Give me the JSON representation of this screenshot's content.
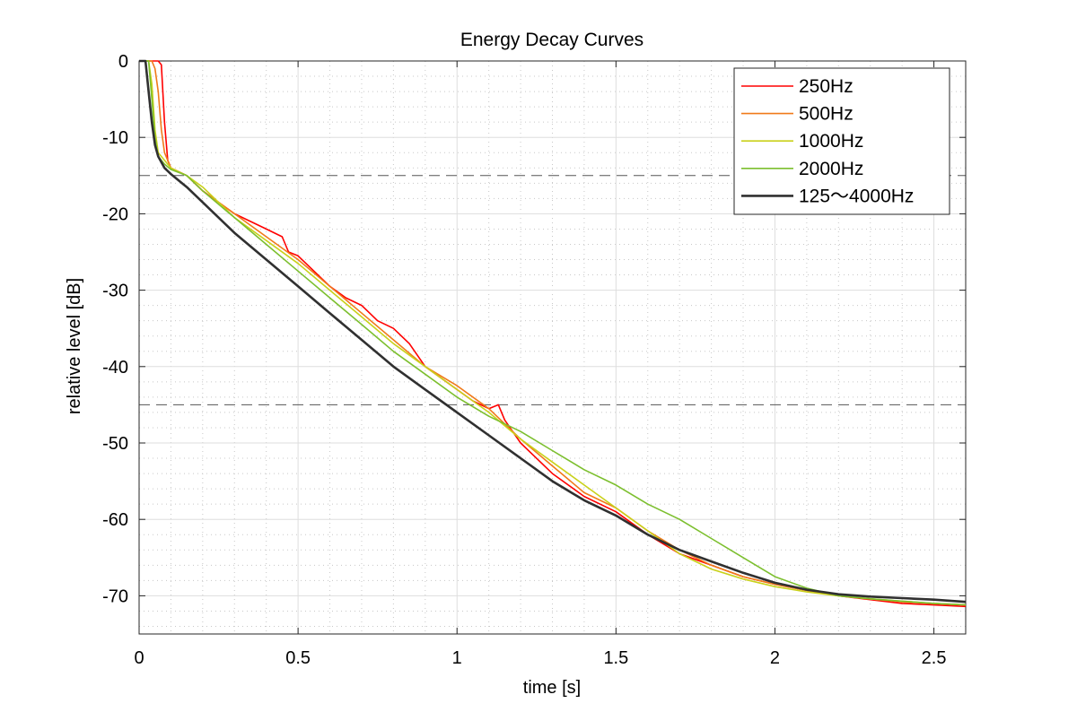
{
  "chart_data": {
    "type": "line",
    "title": "Energy Decay Curves",
    "xlabel": "time [s]",
    "ylabel": "relative level [dB]",
    "xlim": [
      0,
      2.6
    ],
    "ylim": [
      -75,
      0
    ],
    "xticks": [
      0,
      0.5,
      1,
      1.5,
      2,
      2.5
    ],
    "xtick_labels": [
      "0",
      "0.5",
      "1",
      "1.5",
      "2",
      "2.5"
    ],
    "yticks": [
      0,
      -10,
      -20,
      -30,
      -40,
      -50,
      -60,
      -70
    ],
    "ytick_labels": [
      "0",
      "-10",
      "-20",
      "-30",
      "-40",
      "-50",
      "-60",
      "-70"
    ],
    "grid": true,
    "minor_grid": true,
    "legend_position": "top-right",
    "reference_lines": [
      -15,
      -45
    ],
    "series": [
      {
        "name": "250Hz",
        "color": "#ff0000",
        "x": [
          0,
          0.05,
          0.06,
          0.07,
          0.08,
          0.09,
          0.1,
          0.15,
          0.2,
          0.25,
          0.3,
          0.35,
          0.4,
          0.45,
          0.47,
          0.5,
          0.55,
          0.6,
          0.65,
          0.7,
          0.75,
          0.8,
          0.85,
          0.9,
          0.95,
          1.0,
          1.05,
          1.1,
          1.13,
          1.15,
          1.2,
          1.3,
          1.4,
          1.5,
          1.6,
          1.7,
          1.8,
          1.9,
          2.0,
          2.1,
          2.2,
          2.3,
          2.4,
          2.5,
          2.6
        ],
        "y": [
          0,
          0,
          0,
          -0.5,
          -8,
          -13,
          -14,
          -15,
          -17,
          -18.5,
          -20,
          -21,
          -22,
          -23,
          -25,
          -25.5,
          -27.5,
          -29.5,
          -31,
          -32,
          -34,
          -35,
          -37,
          -40,
          -41.5,
          -43,
          -44.5,
          -45.5,
          -45,
          -47,
          -50,
          -54,
          -57,
          -59,
          -62,
          -64.5,
          -66,
          -67.5,
          -68.5,
          -69.3,
          -70,
          -70.5,
          -71,
          -71.2,
          -71.4
        ]
      },
      {
        "name": "500Hz",
        "color": "#f07a1a",
        "x": [
          0,
          0.04,
          0.05,
          0.06,
          0.07,
          0.08,
          0.1,
          0.15,
          0.2,
          0.25,
          0.3,
          0.4,
          0.5,
          0.6,
          0.7,
          0.8,
          0.9,
          1.0,
          1.1,
          1.2,
          1.3,
          1.4,
          1.5,
          1.6,
          1.7,
          1.8,
          1.9,
          2.0,
          2.1,
          2.2,
          2.3,
          2.4,
          2.5,
          2.6
        ],
        "y": [
          0,
          0,
          -1,
          -4,
          -9,
          -12,
          -14,
          -15,
          -17,
          -18.5,
          -20,
          -23,
          -26,
          -29.5,
          -33,
          -36.5,
          -40,
          -42.5,
          -45.5,
          -49.5,
          -53,
          -56.5,
          -58.5,
          -61.5,
          -64,
          -66,
          -67.5,
          -68.5,
          -69.3,
          -70,
          -70.4,
          -70.8,
          -71,
          -71.2
        ]
      },
      {
        "name": "1000Hz",
        "color": "#c9d11a",
        "x": [
          0,
          0.03,
          0.04,
          0.05,
          0.06,
          0.08,
          0.1,
          0.15,
          0.2,
          0.3,
          0.4,
          0.5,
          0.6,
          0.7,
          0.8,
          0.9,
          1.0,
          1.1,
          1.2,
          1.3,
          1.4,
          1.5,
          1.6,
          1.7,
          1.8,
          1.9,
          2.0,
          2.1,
          2.2,
          2.3,
          2.4,
          2.5,
          2.6
        ],
        "y": [
          0,
          0,
          -3,
          -9,
          -12,
          -13,
          -14,
          -15,
          -16.5,
          -20.5,
          -23.5,
          -26.5,
          -30,
          -33.5,
          -37,
          -40,
          -43,
          -46,
          -49.5,
          -52.5,
          -55.5,
          -58.5,
          -61.5,
          -64.5,
          -66.5,
          -67.8,
          -68.8,
          -69.5,
          -70,
          -70.4,
          -70.7,
          -71,
          -71.2
        ]
      },
      {
        "name": "2000Hz",
        "color": "#7cbf2e",
        "x": [
          0,
          0.03,
          0.04,
          0.05,
          0.06,
          0.08,
          0.1,
          0.15,
          0.2,
          0.3,
          0.4,
          0.5,
          0.6,
          0.7,
          0.8,
          0.9,
          1.0,
          1.1,
          1.2,
          1.3,
          1.4,
          1.5,
          1.6,
          1.7,
          1.8,
          1.9,
          2.0,
          2.1,
          2.2,
          2.3,
          2.4,
          2.5,
          2.6
        ],
        "y": [
          0,
          0,
          -5,
          -10,
          -12.5,
          -13.5,
          -14.2,
          -15,
          -17,
          -20.5,
          -24,
          -27.5,
          -31,
          -34.5,
          -38,
          -41,
          -44,
          -46.5,
          -48.5,
          -51,
          -53.5,
          -55.5,
          -58,
          -60,
          -62.5,
          -65,
          -67.5,
          -69,
          -70,
          -70.4,
          -70.7,
          -71,
          -71.2
        ]
      },
      {
        "name": "125〜4000Hz",
        "color": "#303030",
        "x": [
          0,
          0.02,
          0.03,
          0.04,
          0.05,
          0.06,
          0.08,
          0.1,
          0.15,
          0.2,
          0.3,
          0.4,
          0.5,
          0.6,
          0.7,
          0.8,
          0.9,
          1.0,
          1.1,
          1.2,
          1.3,
          1.4,
          1.5,
          1.6,
          1.7,
          1.8,
          1.9,
          2.0,
          2.1,
          2.2,
          2.3,
          2.4,
          2.5,
          2.6
        ],
        "y": [
          0,
          0,
          -4,
          -8,
          -11,
          -12.5,
          -14,
          -14.8,
          -16.5,
          -18.5,
          -22.5,
          -26,
          -29.5,
          -33,
          -36.5,
          -40,
          -43,
          -46,
          -49,
          -52,
          -55,
          -57.5,
          -59.5,
          -62,
          -64,
          -65.5,
          -67,
          -68.3,
          -69.2,
          -69.8,
          -70.1,
          -70.3,
          -70.5,
          -70.8
        ]
      }
    ]
  }
}
